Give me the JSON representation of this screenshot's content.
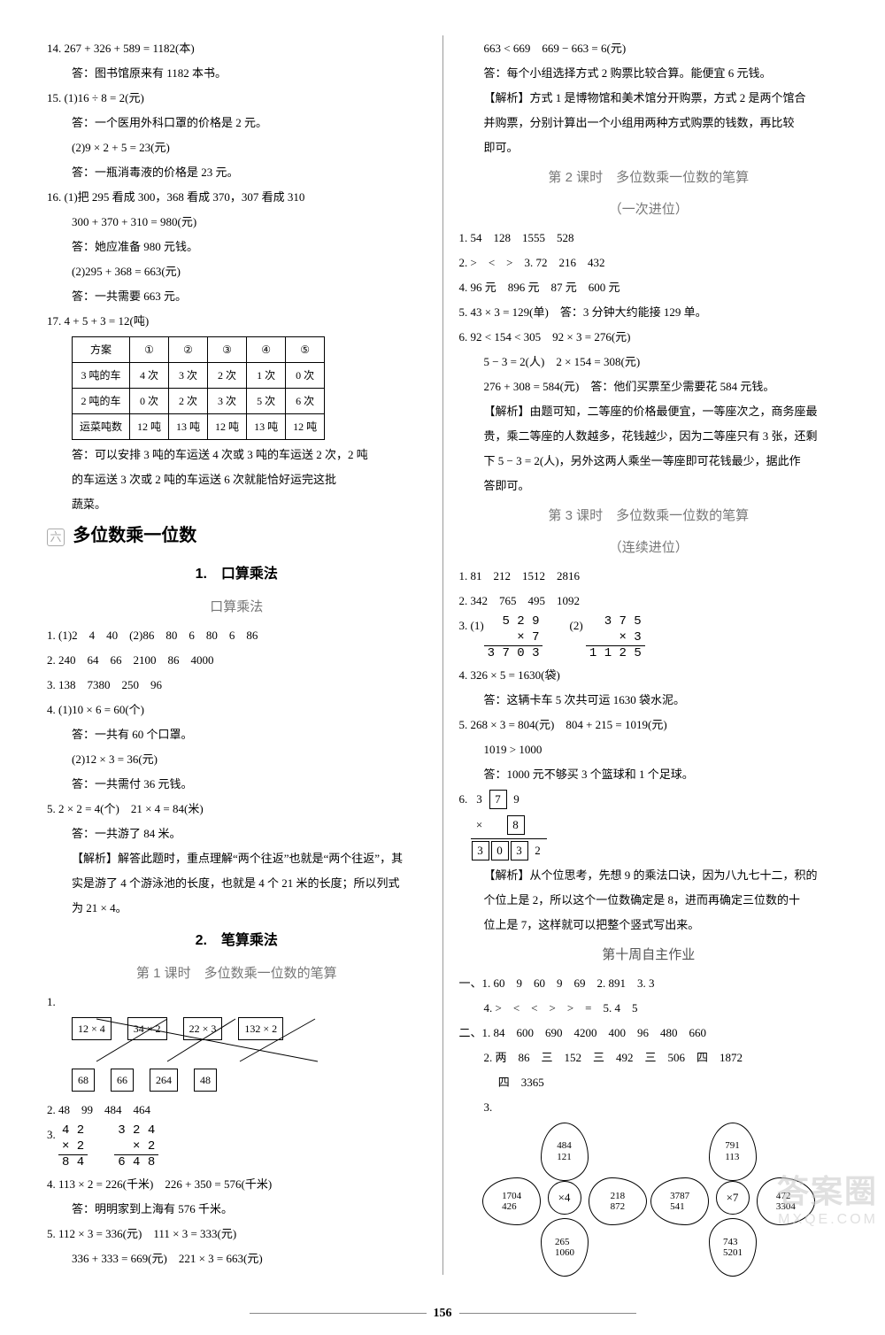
{
  "page_number": "156",
  "watermark": {
    "logo": "答案圈",
    "url": "MXQE.COM"
  },
  "left": {
    "items": [
      {
        "n": "14.",
        "lines": [
          "267 + 326 + 589 = 1182(本)",
          "答：图书馆原来有 1182 本书。"
        ]
      },
      {
        "n": "15.",
        "lines": [
          "(1)16 ÷ 8 = 2(元)",
          "答：一个医用外科口罩的价格是 2 元。",
          "(2)9 × 2 + 5 = 23(元)",
          "答：一瓶消毒液的价格是 23 元。"
        ]
      },
      {
        "n": "16.",
        "lines": [
          "(1)把 295 看成 300，368 看成 370，307 看成 310",
          "300 + 370 + 310 = 980(元)",
          "答：她应准备 980 元钱。",
          "(2)295 + 368 = 663(元)",
          "答：一共需要 663 元。"
        ]
      },
      {
        "n": "17.",
        "pre": "4 + 5 + 3 = 12(吨)",
        "table": {
          "head": [
            "方案",
            "①",
            "②",
            "③",
            "④",
            "⑤"
          ],
          "rows": [
            [
              "3 吨的车",
              "4 次",
              "3 次",
              "2 次",
              "1 次",
              "0 次"
            ],
            [
              "2 吨的车",
              "0 次",
              "2 次",
              "3 次",
              "5 次",
              "6 次"
            ],
            [
              "运菜吨数",
              "12 吨",
              "13 吨",
              "12 吨",
              "13 吨",
              "12 吨"
            ]
          ]
        },
        "after": [
          "答：可以安排 3 吨的车运送 4 次或 3 吨的车运送 2 次，2 吨",
          "的车运送 3 次或 2 吨的车运送 6 次就能恰好运完这批",
          "蔬菜。"
        ]
      }
    ],
    "section_badge": "六",
    "section_title": "多位数乘一位数",
    "sub1_title": "1.　口算乘法",
    "sub1_sub": "口算乘法",
    "oral": [
      {
        "n": "1.",
        "t": "(1)2　4　40　(2)86　80　6　80　6　86"
      },
      {
        "n": "2.",
        "t": "240　64　66　2100　86　4000"
      },
      {
        "n": "3.",
        "t": "138　7380　250　96"
      },
      {
        "n": "4.",
        "lines": [
          "(1)10 × 6 = 60(个)",
          "答：一共有 60 个口罩。",
          "(2)12 × 3 = 36(元)",
          "答：一共需付 36 元钱。"
        ]
      },
      {
        "n": "5.",
        "lines": [
          "2 × 2 = 4(个)　21 × 4 = 84(米)",
          "答：一共游了 84 米。",
          "【解析】解答此题时，重点理解“两个往返”也就是“两个往返”，其",
          "实是游了 4 个游泳池的长度，也就是 4 个 21 米的长度；所以列式",
          "为 21 × 4。"
        ]
      }
    ],
    "sub2_title": "2.　笔算乘法",
    "sub2_sub": "第 1 课时　多位数乘一位数的笔算",
    "match": {
      "top": [
        "12 × 4",
        "34 × 2",
        "22 × 3",
        "132 × 2"
      ],
      "bot": [
        "68",
        "66",
        "264",
        "48"
      ]
    },
    "writ": [
      {
        "n": "2.",
        "t": "48　99　484　464"
      },
      {
        "n": "3.",
        "v": [
          {
            "a": "4 2",
            "b": "×     2",
            "c": "8 4"
          },
          {
            "a": "3 2 4",
            "b": "×     2",
            "c": "6 4 8"
          }
        ]
      },
      {
        "n": "4.",
        "lines": [
          "113 × 2 = 226(千米)　226 + 350 = 576(千米)",
          "答：明明家到上海有 576 千米。"
        ]
      },
      {
        "n": "5.",
        "lines": [
          "112 × 3 = 336(元)　111 × 3 = 333(元)",
          "336 + 333 = 669(元)　221 × 3 = 663(元)"
        ]
      }
    ]
  },
  "right": {
    "cont": [
      "663 < 669　669 − 663 = 6(元)",
      "答：每个小组选择方式 2 购票比较合算。能便宜 6 元钱。",
      "【解析】方式 1 是博物馆和美术馆分开购票，方式 2 是两个馆合",
      "并购票，分别计算出一个小组用两种方式购票的钱数，再比较",
      "即可。"
    ],
    "h2a": "第 2 课时　多位数乘一位数的笔算",
    "h2b": "（一次进位）",
    "once": [
      {
        "n": "1.",
        "t": "54　128　1555　528"
      },
      {
        "n": "2.",
        "t": ">　<　>　3. 72　216　432"
      },
      {
        "n": "4.",
        "t": "96 元　896 元　87 元　600 元"
      },
      {
        "n": "5.",
        "t": "43 × 3 = 129(单)　答：3 分钟大约能接 129 单。"
      },
      {
        "n": "6.",
        "lines": [
          "92 < 154 < 305　92 × 3 = 276(元)",
          "5 − 3 = 2(人)　2 × 154 = 308(元)",
          "276 + 308 = 584(元)　答：他们买票至少需要花 584 元钱。",
          "【解析】由题可知，二等座的价格最便宜，一等座次之，商务座最",
          "贵，乘二等座的人数越多，花钱越少，因为二等座只有 3 张，还剩",
          "下 5 − 3 = 2(人)，另外这两人乘坐一等座即可花钱最少，据此作",
          "答即可。"
        ]
      }
    ],
    "h3a": "第 3 课时　多位数乘一位数的笔算",
    "h3b": "（连续进位）",
    "seq": [
      {
        "n": "1.",
        "t": "81　212　1512　2816"
      },
      {
        "n": "2.",
        "t": "342　765　495　1092"
      },
      {
        "n": "3.",
        "pre": "(1)",
        "v": [
          {
            "a": "5 2 9",
            "b": "×       7",
            "c": "3 7 0 3"
          },
          {
            "a": "3 7 5",
            "b": "×       3",
            "c": "1 1 2 5"
          }
        ],
        "mid": "(2)"
      },
      {
        "n": "4.",
        "lines": [
          "326 × 5 = 1630(袋)",
          "答：这辆卡车 5 次共可运 1630 袋水泥。"
        ]
      },
      {
        "n": "5.",
        "lines": [
          "268 × 3 = 804(元)　804 + 215 = 1019(元)",
          "1019 > 1000",
          "答：1000 元不够买 3 个篮球和 1 个足球。"
        ]
      },
      {
        "n": "6.",
        "box": {
          "top": [
            {
              "t": "3",
              "b": false
            },
            {
              "t": "7",
              "b": true
            },
            {
              "t": "9",
              "b": false
            }
          ],
          "mid": [
            {
              "t": "×",
              "b": false
            },
            {
              "t": "",
              "b": false
            },
            {
              "t": "8",
              "b": true
            }
          ],
          "bot": [
            {
              "t": "3",
              "b": true
            },
            {
              "t": "0",
              "b": true
            },
            {
              "t": "3",
              "b": true
            },
            {
              "t": "2",
              "b": false
            }
          ]
        },
        "after": [
          "【解析】从个位思考，先想 9 的乘法口诀，因为八九七十二，积的",
          "个位上是 2，所以这个一位数确定是 8，进而再确定三位数的十",
          "位上是 7，这样就可以把整个竖式写出来。"
        ]
      }
    ],
    "hw_title": "第十周自主作业",
    "hw": [
      {
        "n": "一、",
        "lines": [
          "1. 60　9　60　9　69　2. 891　3. 3",
          "4. >　<　<　>　>　=　5. 4　5"
        ]
      },
      {
        "n": "二、",
        "lines": [
          "1. 84　600　690　4200　400　96　480　660",
          "2. 两　86　三　152　三　492　三　506　四　1872",
          "　 四　3365"
        ]
      }
    ],
    "flowers": [
      {
        "center": "×4",
        "petals": [
          {
            "a": "484",
            "b": "121"
          },
          {
            "a": "1704",
            "b": "426"
          },
          {
            "a": "218",
            "b": "872"
          },
          {
            "a": "265",
            "b": "1060"
          }
        ]
      },
      {
        "center": "×7",
        "petals": [
          {
            "a": "791",
            "b": "113"
          },
          {
            "a": "3787",
            "b": "541"
          },
          {
            "a": "472",
            "b": "3304"
          },
          {
            "a": "743",
            "b": "5201"
          }
        ]
      }
    ],
    "flower_label": "3."
  }
}
